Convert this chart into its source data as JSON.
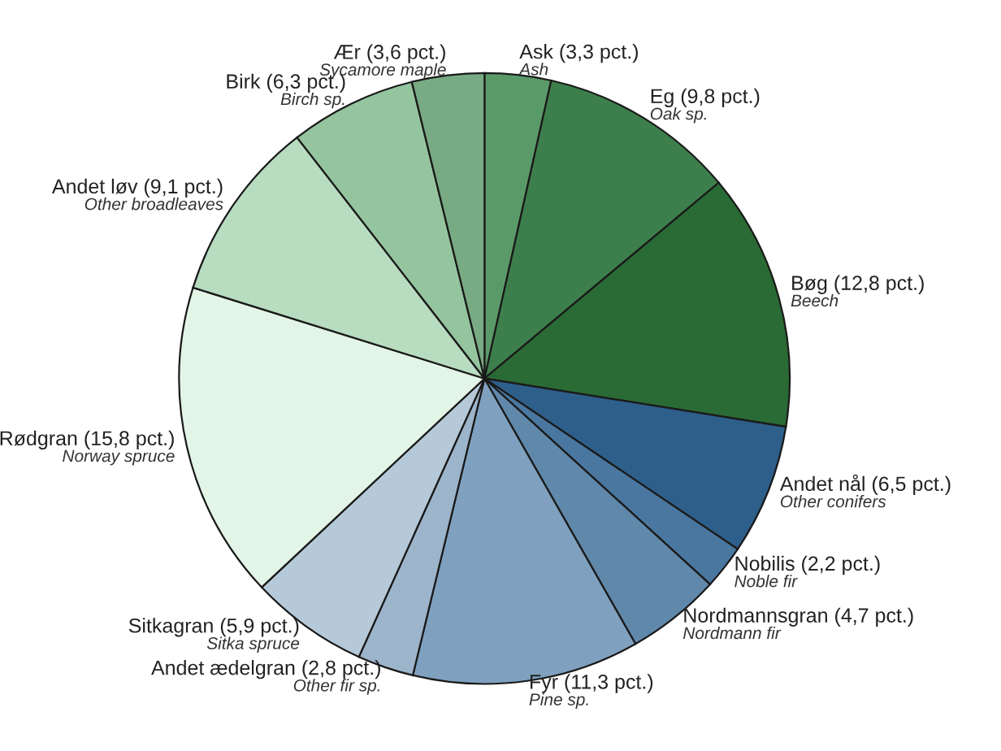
{
  "chart_data": {
    "type": "pie",
    "categories": [
      "Ask (3,3 pct.)",
      "Eg (9,8 pct.)",
      "Bøg (12,8 pct.)",
      "Andet nål (6,5 pct.)",
      "Nobilis (2,2 pct.)",
      "Nordmannsgran (4,7 pct.)",
      "Fyr (11,3 pct.)",
      "Andet ædelgran (2,8 pct.)",
      "Sitkagran (5,9 pct.)",
      "Rødgran (15,8 pct.)",
      "Andet løv (9,1 pct.)",
      "Birk (6,3 pct.)",
      "Ær (3,6 pct.)"
    ],
    "values": [
      3.3,
      9.8,
      12.8,
      6.5,
      2.2,
      4.7,
      11.3,
      2.8,
      5.9,
      15.8,
      9.1,
      6.3,
      3.6
    ],
    "colors": [
      "#5a9a68",
      "#3d7f4c",
      "#2a6a35",
      "#2e5f8a",
      "#4a77a0",
      "#6088ab",
      "#7fa1bf",
      "#9db5cb",
      "#b5c9d8",
      "#e3f5e6",
      "#b8dcc0",
      "#94c59f",
      "#78ab84"
    ],
    "annotations": [
      "Ash",
      "Oak sp.",
      "Beech",
      "Other conifers",
      "Noble fir",
      "Nordmann fir",
      "Pine sp.",
      "Other fir sp.",
      "Sitka spruce",
      "Norway spruce",
      "Other broadleaves",
      "Birch sp.",
      "Sycamore maple"
    ],
    "legend": false
  }
}
